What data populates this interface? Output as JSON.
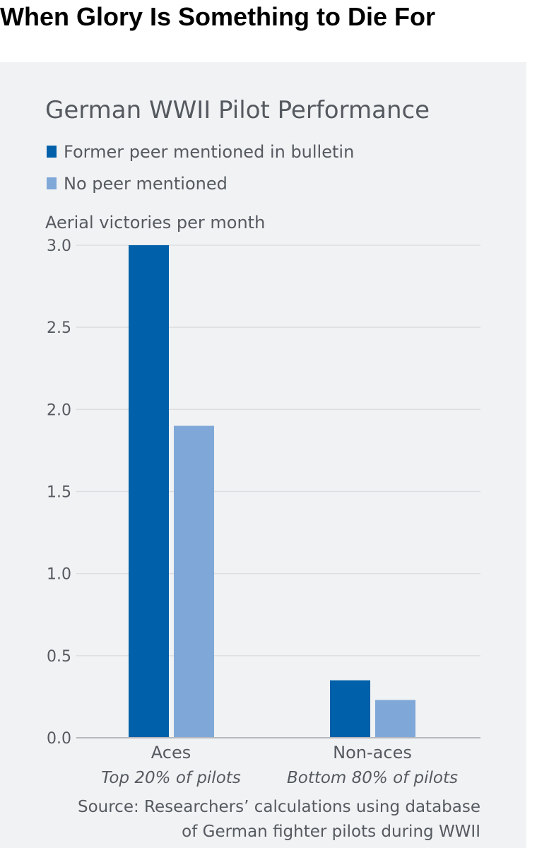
{
  "headline": "When Glory Is Something to Die For",
  "chart_data": {
    "type": "bar",
    "title": "German WWII Pilot Performance",
    "ylabel": "Aerial victories per month",
    "ylim": [
      0,
      3
    ],
    "yticks": [
      "0.0",
      "0.5",
      "1.0",
      "1.5",
      "2.0",
      "2.5",
      "3.0"
    ],
    "ytick_values": [
      0,
      0.5,
      1,
      1.5,
      2,
      2.5,
      3
    ],
    "categories": [
      "Aces",
      "Non-aces"
    ],
    "category_sublabels": [
      "Top 20% of pilots",
      "Bottom 80% of pilots"
    ],
    "series": [
      {
        "name": "Former peer mentioned in bulletin",
        "color": "#0060a9",
        "values": [
          3.0,
          0.35
        ]
      },
      {
        "name": "No peer mentioned",
        "color": "#7fa8d8",
        "values": [
          1.9,
          0.23
        ]
      }
    ],
    "legend_position": "top-left",
    "grid": true,
    "source": [
      "Source: Researchers’ calculations using database",
      "of German fighter pilots during WWII"
    ]
  }
}
